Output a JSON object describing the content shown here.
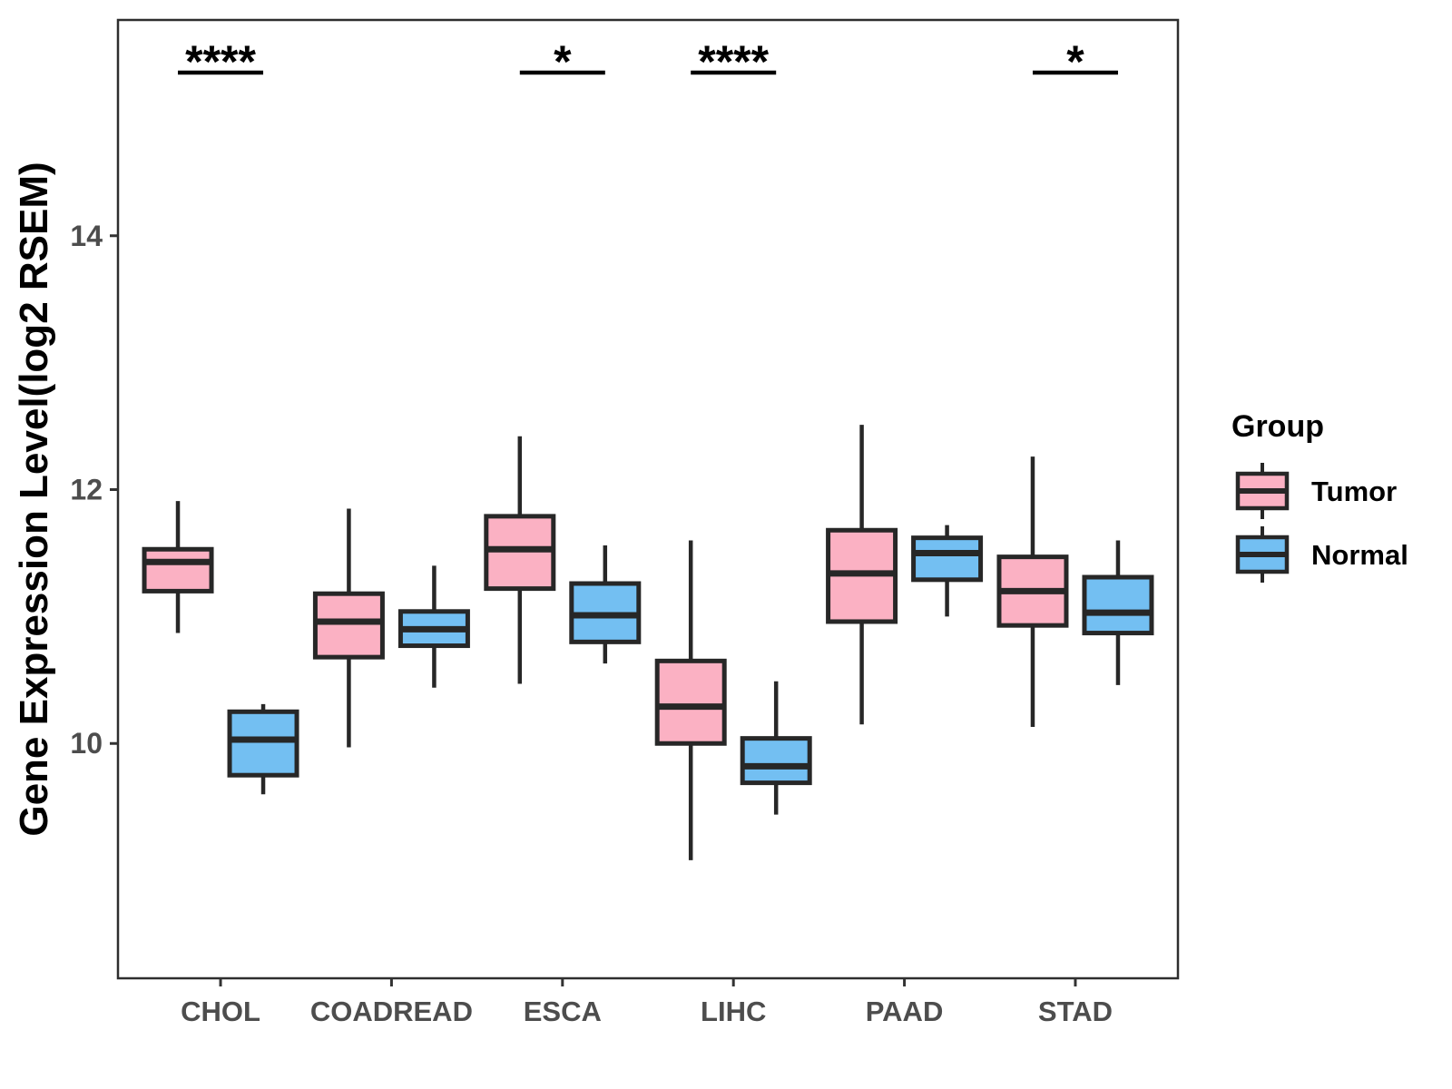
{
  "chart_data": {
    "type": "boxplot",
    "title": "",
    "xlabel": "",
    "ylabel": "Gene Expression Level(log2 RSEM)",
    "categories": [
      "CHOL",
      "COADREAD",
      "ESCA",
      "LIHC",
      "PAAD",
      "STAD"
    ],
    "y_ticks": [
      10,
      12,
      14
    ],
    "ylim": [
      8.15,
      15.7
    ],
    "grid": false,
    "legend": {
      "title": "Group",
      "position": "right",
      "entries": [
        {
          "label": "Tumor",
          "color": "#FBB1C3"
        },
        {
          "label": "Normal",
          "color": "#73BFF2"
        }
      ]
    },
    "series": [
      {
        "name": "Tumor",
        "color": "#FBB1C3",
        "boxes": [
          {
            "min": 10.87,
            "q1": 11.2,
            "median": 11.43,
            "q3": 11.53,
            "max": 11.91
          },
          {
            "min": 9.97,
            "q1": 10.68,
            "median": 10.96,
            "q3": 11.18,
            "max": 11.85
          },
          {
            "min": 10.47,
            "q1": 11.22,
            "median": 11.53,
            "q3": 11.79,
            "max": 12.42
          },
          {
            "min": 9.08,
            "q1": 10.0,
            "median": 10.29,
            "q3": 10.65,
            "max": 11.6
          },
          {
            "min": 10.15,
            "q1": 10.96,
            "median": 11.34,
            "q3": 11.68,
            "max": 12.51
          },
          {
            "min": 10.13,
            "q1": 10.93,
            "median": 11.2,
            "q3": 11.47,
            "max": 12.26
          }
        ]
      },
      {
        "name": "Normal",
        "color": "#73BFF2",
        "boxes": [
          {
            "min": 9.6,
            "q1": 9.75,
            "median": 10.03,
            "q3": 10.25,
            "max": 10.31
          },
          {
            "min": 10.44,
            "q1": 10.77,
            "median": 10.9,
            "q3": 11.04,
            "max": 11.4
          },
          {
            "min": 10.63,
            "q1": 10.8,
            "median": 11.01,
            "q3": 11.26,
            "max": 11.56
          },
          {
            "min": 9.44,
            "q1": 9.69,
            "median": 9.82,
            "q3": 10.04,
            "max": 10.49
          },
          {
            "min": 11.0,
            "q1": 11.29,
            "median": 11.5,
            "q3": 11.62,
            "max": 11.72
          },
          {
            "min": 10.46,
            "q1": 10.87,
            "median": 11.03,
            "q3": 11.31,
            "max": 11.6
          }
        ]
      }
    ],
    "significance": [
      {
        "category": "CHOL",
        "label": "****"
      },
      {
        "category": "ESCA",
        "label": "*"
      },
      {
        "category": "LIHC",
        "label": "****"
      },
      {
        "category": "STAD",
        "label": "*"
      }
    ]
  },
  "colors": {
    "box_border": "#272727",
    "median_line": "#272727",
    "whisker": "#272727",
    "panel_border": "#2e2e2e",
    "axis_tick": "#333333",
    "axis_text": "#4d4d4d",
    "axis_title": "#000000",
    "legend_text": "#000000",
    "significance": "#000000",
    "background": "#ffffff"
  }
}
